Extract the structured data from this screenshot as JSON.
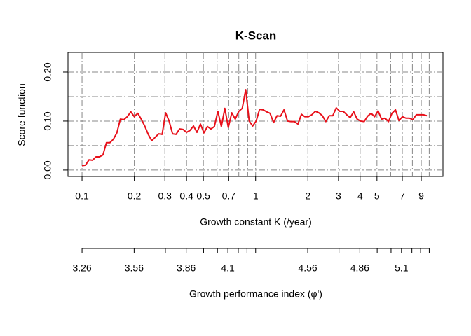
{
  "chart_data": {
    "type": "line",
    "title": "K-Scan",
    "ylabel": "Score function",
    "xlabel": "Growth constant K (/year)",
    "x2label": "Growth performance index (φ')",
    "xlog": true,
    "grid": true,
    "xlim": [
      0.083,
      12
    ],
    "ylim": [
      -0.013,
      0.24
    ],
    "x2lim": [
      3.179,
      5.339
    ],
    "xticks": [
      0.1,
      0.2,
      0.3,
      0.4,
      0.5,
      0.7,
      1,
      2,
      3,
      4,
      5,
      7,
      9
    ],
    "xgrid": [
      0.1,
      0.2,
      0.3,
      0.4,
      0.5,
      0.6,
      0.7,
      0.8,
      0.9,
      1,
      2,
      3,
      4,
      5,
      6,
      7,
      8,
      9,
      10
    ],
    "yticks": [
      {
        "value": 0,
        "label": "0.00"
      },
      {
        "value": 0.1,
        "label": "0.10"
      },
      {
        "value": 0.2,
        "label": "0.20"
      }
    ],
    "ygrid": [
      0,
      0.05,
      0.1,
      0.15,
      0.2
    ],
    "x2ticks": [
      3.26,
      3.56,
      3.86,
      4.1,
      4.56,
      4.86,
      5.1
    ],
    "x2minor": [
      3.74,
      3.96,
      4.04,
      4.16,
      4.21,
      4.26,
      4.74,
      4.96,
      5.04,
      5.16,
      5.21,
      5.26
    ],
    "series": [
      {
        "name": "Score",
        "color": "#e8101a",
        "x": [
          0.1,
          0.1047,
          0.1097,
          0.1149,
          0.1203,
          0.126,
          0.132,
          0.1382,
          0.1447,
          0.1516,
          0.1587,
          0.1662,
          0.1741,
          0.1823,
          0.191,
          0.2,
          0.2094,
          0.2193,
          0.2297,
          0.2406,
          0.252,
          0.2639,
          0.2763,
          0.2894,
          0.3031,
          0.3174,
          0.3324,
          0.3481,
          0.3646,
          0.3818,
          0.3999,
          0.4188,
          0.4386,
          0.4593,
          0.481,
          0.5038,
          0.5276,
          0.5525,
          0.5786,
          0.606,
          0.6346,
          0.6646,
          0.696,
          0.7289,
          0.7634,
          0.7995,
          0.8372,
          0.8768,
          0.9183,
          0.9617,
          1.007,
          1.054,
          1.105,
          1.157,
          1.211,
          1.269,
          1.329,
          1.392,
          1.457,
          1.527,
          1.598,
          1.674,
          1.753,
          1.836,
          1.923,
          2.014,
          2.109,
          2.208,
          2.313,
          2.423,
          2.538,
          2.657,
          2.782,
          2.914,
          3.052,
          3.196,
          3.347,
          3.505,
          3.672,
          3.845,
          4.027,
          4.217,
          4.417,
          4.625,
          4.844,
          5.073,
          5.313,
          5.564,
          5.827,
          6.102,
          6.39,
          6.693,
          7.009,
          7.34,
          7.687,
          8.051,
          8.431,
          8.83,
          9.247,
          9.684
        ],
        "values": [
          0.009,
          0.01,
          0.021,
          0.02,
          0.027,
          0.027,
          0.031,
          0.056,
          0.056,
          0.063,
          0.076,
          0.104,
          0.103,
          0.109,
          0.119,
          0.109,
          0.116,
          0.104,
          0.09,
          0.073,
          0.06,
          0.067,
          0.074,
          0.073,
          0.117,
          0.1,
          0.074,
          0.073,
          0.084,
          0.083,
          0.077,
          0.081,
          0.09,
          0.077,
          0.094,
          0.076,
          0.089,
          0.084,
          0.089,
          0.12,
          0.089,
          0.126,
          0.087,
          0.117,
          0.104,
          0.12,
          0.126,
          0.164,
          0.1,
          0.09,
          0.1,
          0.124,
          0.123,
          0.119,
          0.116,
          0.097,
          0.111,
          0.11,
          0.123,
          0.1,
          0.099,
          0.099,
          0.094,
          0.114,
          0.109,
          0.109,
          0.113,
          0.12,
          0.117,
          0.111,
          0.099,
          0.111,
          0.111,
          0.127,
          0.12,
          0.12,
          0.113,
          0.107,
          0.119,
          0.104,
          0.1,
          0.099,
          0.11,
          0.116,
          0.109,
          0.121,
          0.104,
          0.106,
          0.099,
          0.116,
          0.123,
          0.101,
          0.109,
          0.106,
          0.106,
          0.103,
          0.113,
          0.113,
          0.113,
          0.111
        ]
      }
    ]
  }
}
